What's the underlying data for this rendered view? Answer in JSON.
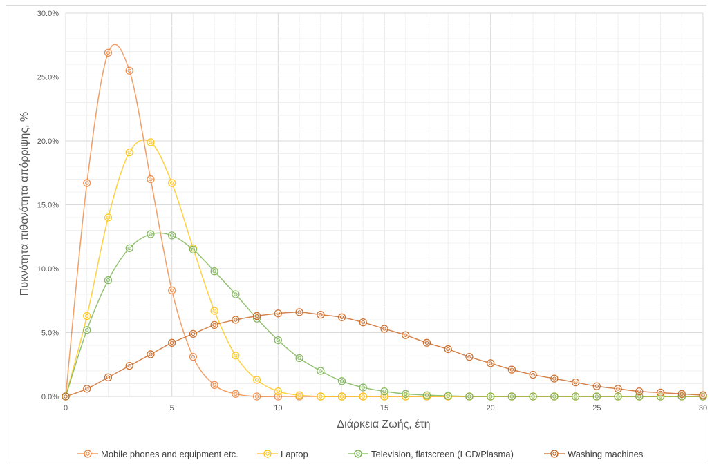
{
  "chart_data": {
    "type": "line",
    "title": "",
    "xlabel": "Διάρκεια Ζωής, έτη",
    "ylabel": "Πυκνότητα πιθανότητα απόρριψης, %",
    "xlim": [
      0,
      30
    ],
    "ylim": [
      0,
      30
    ],
    "x_ticks": [
      "0",
      "5",
      "10",
      "15",
      "20",
      "25",
      "30"
    ],
    "y_ticks": [
      "0.0%",
      "5.0%",
      "10.0%",
      "15.0%",
      "20.0%",
      "25.0%",
      "30.0%"
    ],
    "grid": true,
    "legend_position": "bottom",
    "x": [
      0,
      1,
      2,
      3,
      4,
      5,
      6,
      7,
      8,
      9,
      10,
      11,
      12,
      13,
      14,
      15,
      16,
      17,
      18,
      19,
      20,
      21,
      22,
      23,
      24,
      25,
      26,
      27,
      28,
      29,
      30
    ],
    "series": [
      {
        "name": "Mobile phones and equipment etc.",
        "color": "#ed7d31",
        "values": [
          0,
          16.7,
          26.9,
          25.5,
          17.0,
          8.3,
          3.1,
          0.9,
          0.2,
          0,
          0,
          0,
          0,
          0,
          0,
          0,
          0,
          0,
          0,
          0,
          0,
          0,
          0,
          0,
          0,
          0,
          0,
          0,
          0,
          0,
          0
        ]
      },
      {
        "name": "Laptop",
        "color": "#ffc000",
        "values": [
          0,
          6.3,
          14.0,
          19.1,
          19.9,
          16.7,
          11.6,
          6.7,
          3.2,
          1.3,
          0.4,
          0.1,
          0,
          0,
          0,
          0,
          0,
          0,
          0,
          0,
          0,
          0,
          0,
          0,
          0,
          0,
          0,
          0,
          0,
          0,
          0
        ]
      },
      {
        "name": "Television, flatscreen (LCD/Plasma)",
        "color": "#70ad47",
        "values": [
          0,
          5.2,
          9.1,
          11.6,
          12.7,
          12.6,
          11.5,
          9.8,
          8.0,
          6.1,
          4.4,
          3.0,
          2.0,
          1.2,
          0.7,
          0.4,
          0.2,
          0.1,
          0.05,
          0,
          0,
          0,
          0,
          0,
          0,
          0,
          0,
          0,
          0,
          0,
          0
        ]
      },
      {
        "name": "Washing machines",
        "color": "#c55a11",
        "values": [
          0,
          0.6,
          1.5,
          2.4,
          3.3,
          4.2,
          4.9,
          5.6,
          6.0,
          6.3,
          6.5,
          6.6,
          6.4,
          6.2,
          5.8,
          5.3,
          4.8,
          4.2,
          3.7,
          3.1,
          2.6,
          2.1,
          1.7,
          1.4,
          1.1,
          0.8,
          0.6,
          0.4,
          0.3,
          0.2,
          0.1
        ]
      }
    ]
  }
}
